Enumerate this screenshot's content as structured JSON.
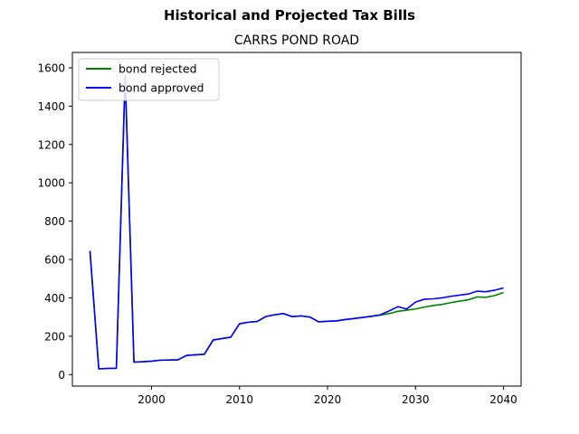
{
  "suptitle": "Historical and Projected Tax Bills",
  "chart_data": {
    "type": "line",
    "title": "CARRS POND ROAD",
    "xlabel": "",
    "ylabel": "",
    "xlim": [
      1991,
      2042
    ],
    "ylim": [
      -60,
      1680
    ],
    "x_ticks": [
      2000,
      2010,
      2020,
      2030,
      2040
    ],
    "y_ticks": [
      0,
      200,
      400,
      600,
      800,
      1000,
      1200,
      1400,
      1600
    ],
    "grid": false,
    "legend_position": "top-left",
    "series": [
      {
        "name": "bond rejected",
        "color": "#008000",
        "x": [
          1993,
          1994,
          1995,
          1996,
          1997,
          1998,
          1999,
          2000,
          2001,
          2002,
          2003,
          2004,
          2005,
          2006,
          2007,
          2008,
          2009,
          2010,
          2011,
          2012,
          2013,
          2014,
          2015,
          2016,
          2017,
          2018,
          2019,
          2020,
          2021,
          2022,
          2023,
          2024,
          2025,
          2026,
          2027,
          2028,
          2029,
          2030,
          2031,
          2032,
          2033,
          2034,
          2035,
          2036,
          2037,
          2038,
          2039,
          2040
        ],
        "values": [
          645,
          30,
          32,
          33,
          1560,
          65,
          67,
          70,
          75,
          76,
          77,
          100,
          103,
          106,
          180,
          188,
          195,
          265,
          273,
          277,
          303,
          312,
          318,
          302,
          306,
          300,
          275,
          278,
          280,
          287,
          292,
          298,
          304,
          310,
          318,
          330,
          336,
          342,
          352,
          360,
          366,
          375,
          383,
          390,
          405,
          403,
          412,
          428
        ]
      },
      {
        "name": "bond approved",
        "color": "#0000ff",
        "x": [
          1993,
          1994,
          1995,
          1996,
          1997,
          1998,
          1999,
          2000,
          2001,
          2002,
          2003,
          2004,
          2005,
          2006,
          2007,
          2008,
          2009,
          2010,
          2011,
          2012,
          2013,
          2014,
          2015,
          2016,
          2017,
          2018,
          2019,
          2020,
          2021,
          2022,
          2023,
          2024,
          2025,
          2026,
          2027,
          2028,
          2029,
          2030,
          2031,
          2032,
          2033,
          2034,
          2035,
          2036,
          2037,
          2038,
          2039,
          2040
        ],
        "values": [
          645,
          30,
          32,
          33,
          1560,
          65,
          67,
          70,
          75,
          76,
          77,
          100,
          103,
          106,
          180,
          188,
          195,
          265,
          273,
          277,
          303,
          312,
          318,
          302,
          306,
          300,
          275,
          278,
          280,
          287,
          292,
          298,
          304,
          312,
          332,
          354,
          342,
          378,
          393,
          395,
          400,
          408,
          414,
          420,
          435,
          432,
          440,
          452
        ]
      }
    ]
  }
}
